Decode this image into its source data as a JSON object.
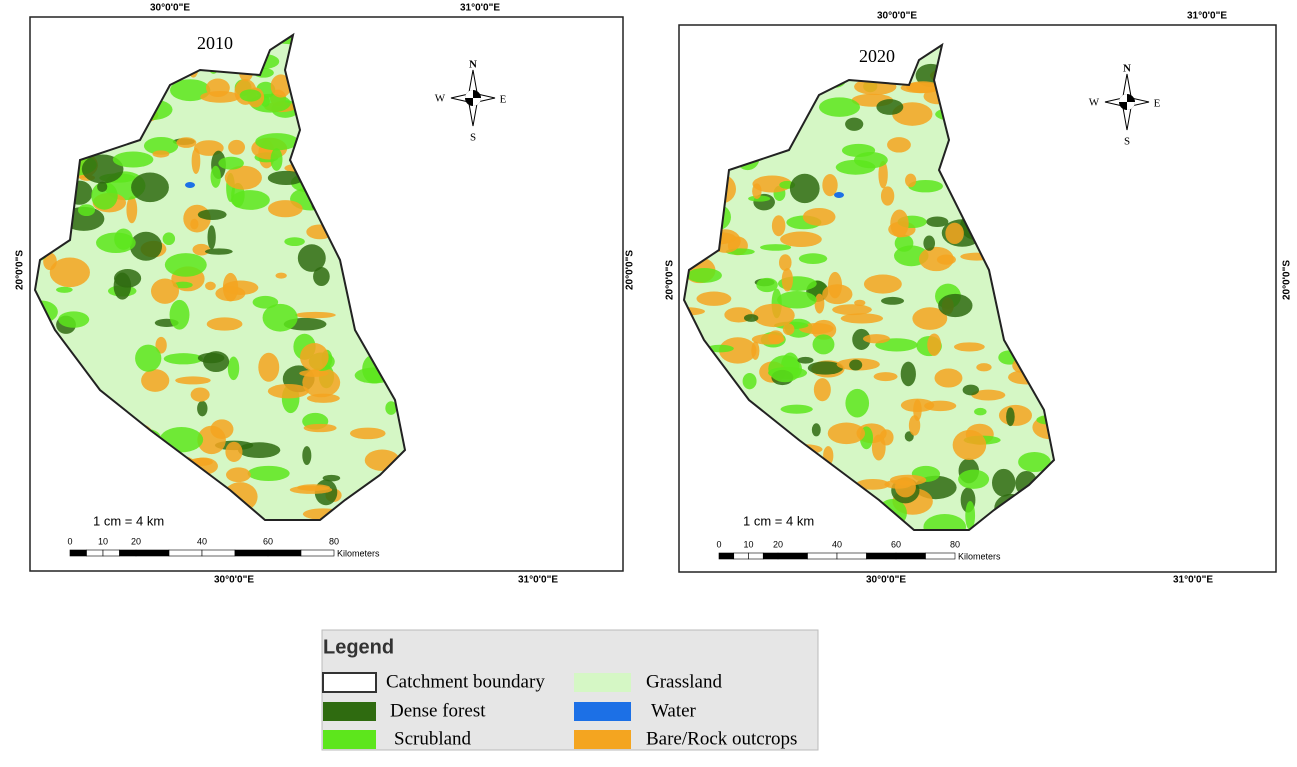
{
  "maps": [
    {
      "year": "2010",
      "top_labels": [
        "30°0'0\"E",
        "31°0'0\"E"
      ],
      "side_label": "20°0'0\"S",
      "bottom_labels": [
        "30°0'0\"E",
        "31°0'0\"E"
      ],
      "compass": {
        "n": "N",
        "s": "S",
        "e": "E",
        "w": "W"
      },
      "scale_text": "1 cm = 4 km",
      "scale_ticks": [
        0,
        10,
        20,
        40,
        60,
        80
      ],
      "scale_unit": "Kilometers"
    },
    {
      "year": "2020",
      "top_labels": [
        "30°0'0\"E",
        "31°0'0\"E"
      ],
      "side_label": "20°0'0\"S",
      "bottom_labels": [
        "30°0'0\"E",
        "31°0'0\"E"
      ],
      "compass": {
        "n": "N",
        "s": "S",
        "e": "E",
        "w": "W"
      },
      "scale_text": "1 cm = 4 km",
      "scale_ticks": [
        0,
        10,
        20,
        40,
        60,
        80
      ],
      "scale_unit": "Kilometers"
    }
  ],
  "legend": {
    "title": "Legend",
    "items": [
      {
        "label": "Catchment boundary",
        "color": "#ffffff"
      },
      {
        "label": "Dense forest",
        "color": "#2f6b10"
      },
      {
        "label": "Scrubland",
        "color": "#5de61c"
      },
      {
        "label": "Grassland",
        "color": "#d5f7c5"
      },
      {
        "label": "Water",
        "color": "#1c70e6"
      },
      {
        "label": "Bare/Rock outcrops",
        "color": "#f4a520"
      }
    ]
  }
}
